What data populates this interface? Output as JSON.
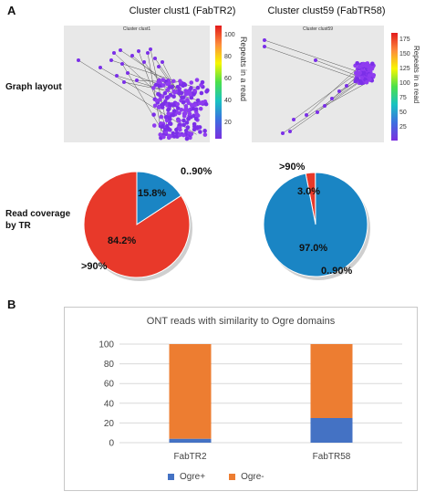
{
  "panel_a": {
    "letter": "A",
    "left_title": "Cluster clust1 (FabTR2)",
    "right_title": "Cluster clust59 (FabTR58)",
    "row1_label": [
      "Graph layout"
    ],
    "row2_label": [
      "Read coverage",
      "by TR"
    ],
    "left_graph_title": "Cluster clust1",
    "right_graph_title": "Cluster clust59",
    "colorbar_label": "Repeats in a read",
    "left_colorbar_ticks": [
      "100",
      "80",
      "60",
      "40",
      "20"
    ],
    "right_colorbar_ticks": [
      "175",
      "150",
      "125",
      "100",
      "75",
      "50",
      "25"
    ],
    "colors": {
      "red": "#e8392a",
      "blue": "#1a85c4"
    }
  },
  "panel_b": {
    "letter": "B",
    "legend": [
      "Ogre+",
      "Ogre-"
    ]
  },
  "chart_data": [
    {
      "type": "pie",
      "title": "",
      "slices": [
        {
          "label": "0..90%",
          "value": 15.8,
          "text": "15.8%",
          "color": "#1a85c4"
        },
        {
          "label": ">90%",
          "value": 84.2,
          "text": "84.2%",
          "color": "#e8392a"
        }
      ]
    },
    {
      "type": "pie",
      "title": "",
      "slices": [
        {
          "label": ">90%",
          "value": 3.0,
          "text": "3.0%",
          "color": "#e8392a"
        },
        {
          "label": "0..90%",
          "value": 97.0,
          "text": "97.0%",
          "color": "#1a85c4"
        }
      ]
    },
    {
      "type": "bar",
      "stacked": true,
      "title": "ONT reads with similarity to Ogre domains",
      "categories": [
        "FabTR2",
        "FabTR58"
      ],
      "series": [
        {
          "name": "Ogre+",
          "values": [
            4,
            25
          ],
          "color": "#4472c4"
        },
        {
          "name": "Ogre-",
          "values": [
            96,
            75
          ],
          "color": "#ed7d31"
        }
      ],
      "yticks": [
        "0",
        "20",
        "40",
        "60",
        "80",
        "100"
      ],
      "ylim": [
        0,
        100
      ],
      "grid": true,
      "legend_position": "bottom"
    }
  ]
}
